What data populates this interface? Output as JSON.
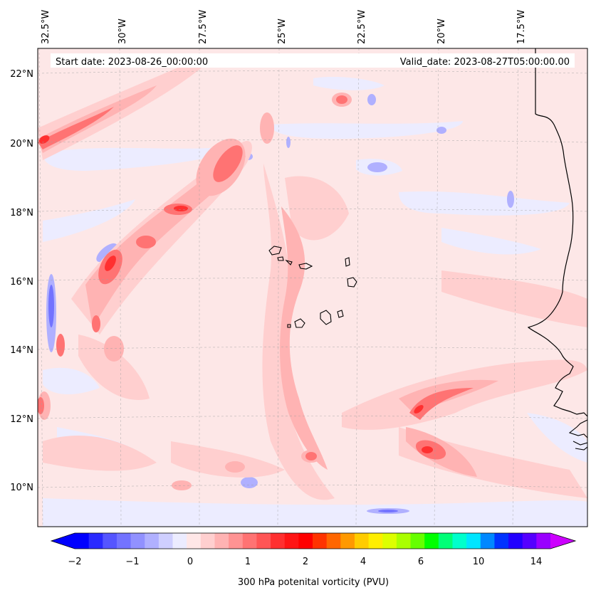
{
  "map": {
    "start_date": "Start date: 2023-08-26_00:00:00",
    "valid_date": "Valid_date: 2023-08-27T05:00:00.00",
    "lon_labels": [
      "32.5°W",
      "30°W",
      "27.5°W",
      "25°W",
      "22.5°W",
      "20°W",
      "17.5°W"
    ],
    "lat_labels": [
      "22°N",
      "20°N",
      "18°N",
      "16°N",
      "14°N",
      "12°N",
      "10°N"
    ],
    "background_color": "#fde7e7",
    "coastline_color": "#000000"
  },
  "colorbar": {
    "label": "300 hPa potenital vorticity (PVU)",
    "tick_labels": [
      "−2",
      "−1",
      "0",
      "1",
      "2",
      "4",
      "6",
      "10",
      "14"
    ],
    "colors": [
      "#0000ff",
      "#2a2aff",
      "#5555ff",
      "#7373ff",
      "#9191ff",
      "#b0b0ff",
      "#cfcfff",
      "#ececff",
      "#ffe7e7",
      "#ffcfcf",
      "#ffb3b3",
      "#ff9393",
      "#ff7373",
      "#ff5555",
      "#ff3030",
      "#ff1515",
      "#ff0000",
      "#ff3300",
      "#ff6600",
      "#ff9900",
      "#ffcc00",
      "#ffee00",
      "#ddff00",
      "#aaff00",
      "#66ff00",
      "#00ff00",
      "#00ff77",
      "#00ffcc",
      "#00e5ff",
      "#0088ff",
      "#0033ff",
      "#2200ff",
      "#5500ff",
      "#9900ff"
    ],
    "over_color": "#cc00ff",
    "under_color": "#0000ff"
  }
}
